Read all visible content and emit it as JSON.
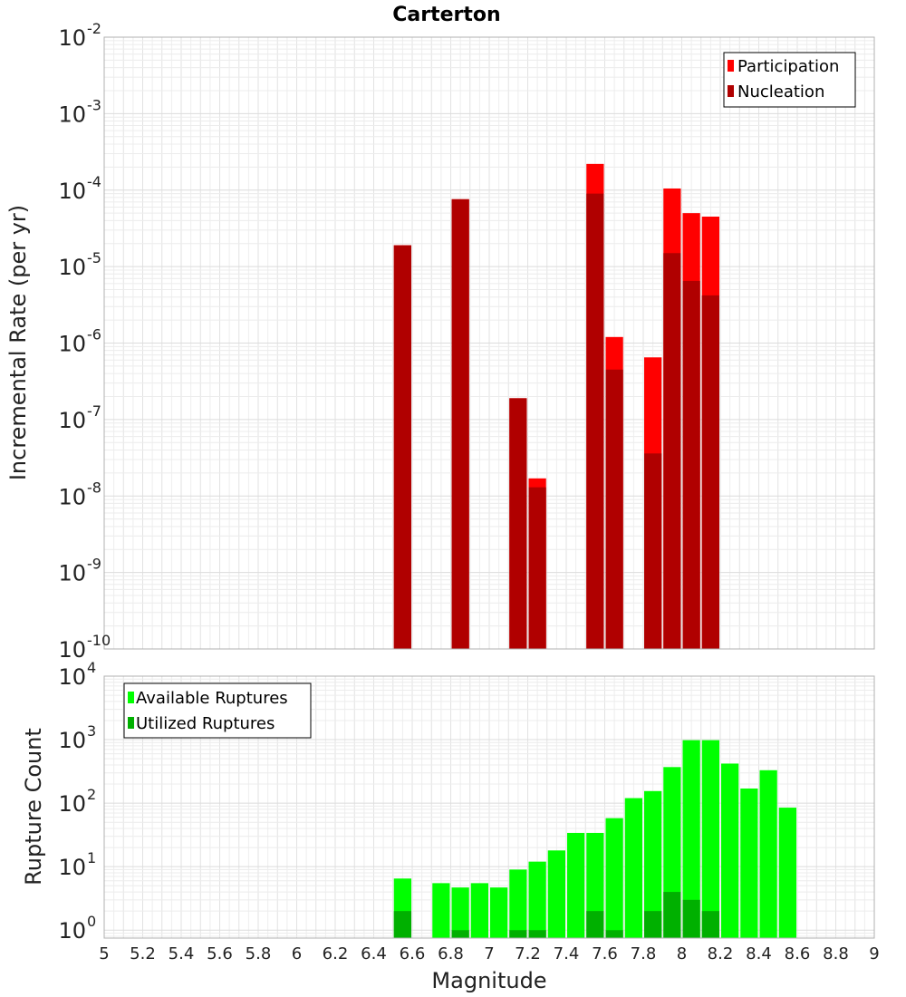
{
  "chart_data": [
    {
      "type": "bar",
      "title": "Carterton",
      "xlabel": "",
      "ylabel": "Incremental Rate (per yr)",
      "yscale": "log",
      "ylim": [
        1e-10,
        0.01
      ],
      "xlim": [
        5,
        9
      ],
      "bar_width": 0.1,
      "y_ticks": [
        {
          "base": "10",
          "exp": "-10",
          "value": 1e-10
        },
        {
          "base": "10",
          "exp": "-9",
          "value": 1e-09
        },
        {
          "base": "10",
          "exp": "-8",
          "value": 1e-08
        },
        {
          "base": "10",
          "exp": "-7",
          "value": 1e-07
        },
        {
          "base": "10",
          "exp": "-6",
          "value": 1e-06
        },
        {
          "base": "10",
          "exp": "-5",
          "value": 1e-05
        },
        {
          "base": "10",
          "exp": "-4",
          "value": 0.0001
        },
        {
          "base": "10",
          "exp": "-3",
          "value": 0.001
        },
        {
          "base": "10",
          "exp": "-2",
          "value": 0.01
        }
      ],
      "legend": {
        "placement": "top-right",
        "entries": [
          "Participation",
          "Nucleation"
        ]
      },
      "series": [
        {
          "name": "Participation",
          "color": "#ff0000",
          "points": [
            {
              "x": 6.55,
              "y": 1.9e-05
            },
            {
              "x": 6.85,
              "y": 7.6e-05
            },
            {
              "x": 7.15,
              "y": 1.9e-07
            },
            {
              "x": 7.25,
              "y": 1.7e-08
            },
            {
              "x": 7.55,
              "y": 0.00022
            },
            {
              "x": 7.65,
              "y": 1.2e-06
            },
            {
              "x": 7.85,
              "y": 6.5e-07
            },
            {
              "x": 7.95,
              "y": 0.000105
            },
            {
              "x": 8.05,
              "y": 5e-05
            },
            {
              "x": 8.15,
              "y": 4.5e-05
            }
          ]
        },
        {
          "name": "Nucleation",
          "color": "#b00000",
          "points": [
            {
              "x": 6.55,
              "y": 1.9e-05
            },
            {
              "x": 6.85,
              "y": 7.6e-05
            },
            {
              "x": 7.15,
              "y": 1.9e-07
            },
            {
              "x": 7.25,
              "y": 1.3e-08
            },
            {
              "x": 7.55,
              "y": 9e-05
            },
            {
              "x": 7.65,
              "y": 4.5e-07
            },
            {
              "x": 7.85,
              "y": 3.6e-08
            },
            {
              "x": 7.95,
              "y": 1.5e-05
            },
            {
              "x": 8.05,
              "y": 6.5e-06
            },
            {
              "x": 8.15,
              "y": 4.2e-06
            }
          ]
        }
      ]
    },
    {
      "type": "bar",
      "title": "",
      "xlabel": "Magnitude",
      "ylabel": "Rupture Count",
      "yscale": "log",
      "ylim": [
        0.75,
        10000
      ],
      "xlim": [
        5,
        9
      ],
      "bar_width": 0.1,
      "x_ticks": [
        "5",
        "5.2",
        "5.4",
        "5.6",
        "5.8",
        "6",
        "6.2",
        "6.4",
        "6.6",
        "6.8",
        "7",
        "7.2",
        "7.4",
        "7.6",
        "7.8",
        "8",
        "8.2",
        "8.4",
        "8.6",
        "8.8",
        "9"
      ],
      "y_ticks": [
        {
          "base": "10",
          "exp": "0",
          "value": 1
        },
        {
          "base": "10",
          "exp": "1",
          "value": 10
        },
        {
          "base": "10",
          "exp": "2",
          "value": 100
        },
        {
          "base": "10",
          "exp": "3",
          "value": 1000
        },
        {
          "base": "10",
          "exp": "4",
          "value": 10000
        }
      ],
      "legend": {
        "placement": "top-left",
        "entries": [
          "Available Ruptures",
          "Utilized Ruptures"
        ]
      },
      "series": [
        {
          "name": "Available Ruptures",
          "color": "#00ff00",
          "points": [
            {
              "x": 6.55,
              "y": 6.5
            },
            {
              "x": 6.75,
              "y": 5.5
            },
            {
              "x": 6.85,
              "y": 4.7
            },
            {
              "x": 6.95,
              "y": 5.5
            },
            {
              "x": 7.05,
              "y": 4.7
            },
            {
              "x": 7.15,
              "y": 9
            },
            {
              "x": 7.25,
              "y": 12
            },
            {
              "x": 7.35,
              "y": 18
            },
            {
              "x": 7.45,
              "y": 34
            },
            {
              "x": 7.55,
              "y": 34
            },
            {
              "x": 7.65,
              "y": 58
            },
            {
              "x": 7.75,
              "y": 120
            },
            {
              "x": 7.85,
              "y": 155
            },
            {
              "x": 7.95,
              "y": 370
            },
            {
              "x": 8.05,
              "y": 980
            },
            {
              "x": 8.15,
              "y": 980
            },
            {
              "x": 8.25,
              "y": 420
            },
            {
              "x": 8.35,
              "y": 170
            },
            {
              "x": 8.45,
              "y": 330
            },
            {
              "x": 8.55,
              "y": 85
            }
          ]
        },
        {
          "name": "Utilized Ruptures",
          "color": "#00b000",
          "points": [
            {
              "x": 6.55,
              "y": 2
            },
            {
              "x": 6.85,
              "y": 1
            },
            {
              "x": 7.15,
              "y": 1
            },
            {
              "x": 7.25,
              "y": 1
            },
            {
              "x": 7.55,
              "y": 2
            },
            {
              "x": 7.65,
              "y": 1
            },
            {
              "x": 7.85,
              "y": 2
            },
            {
              "x": 7.95,
              "y": 4
            },
            {
              "x": 8.05,
              "y": 3
            },
            {
              "x": 8.15,
              "y": 2
            }
          ]
        }
      ]
    }
  ]
}
